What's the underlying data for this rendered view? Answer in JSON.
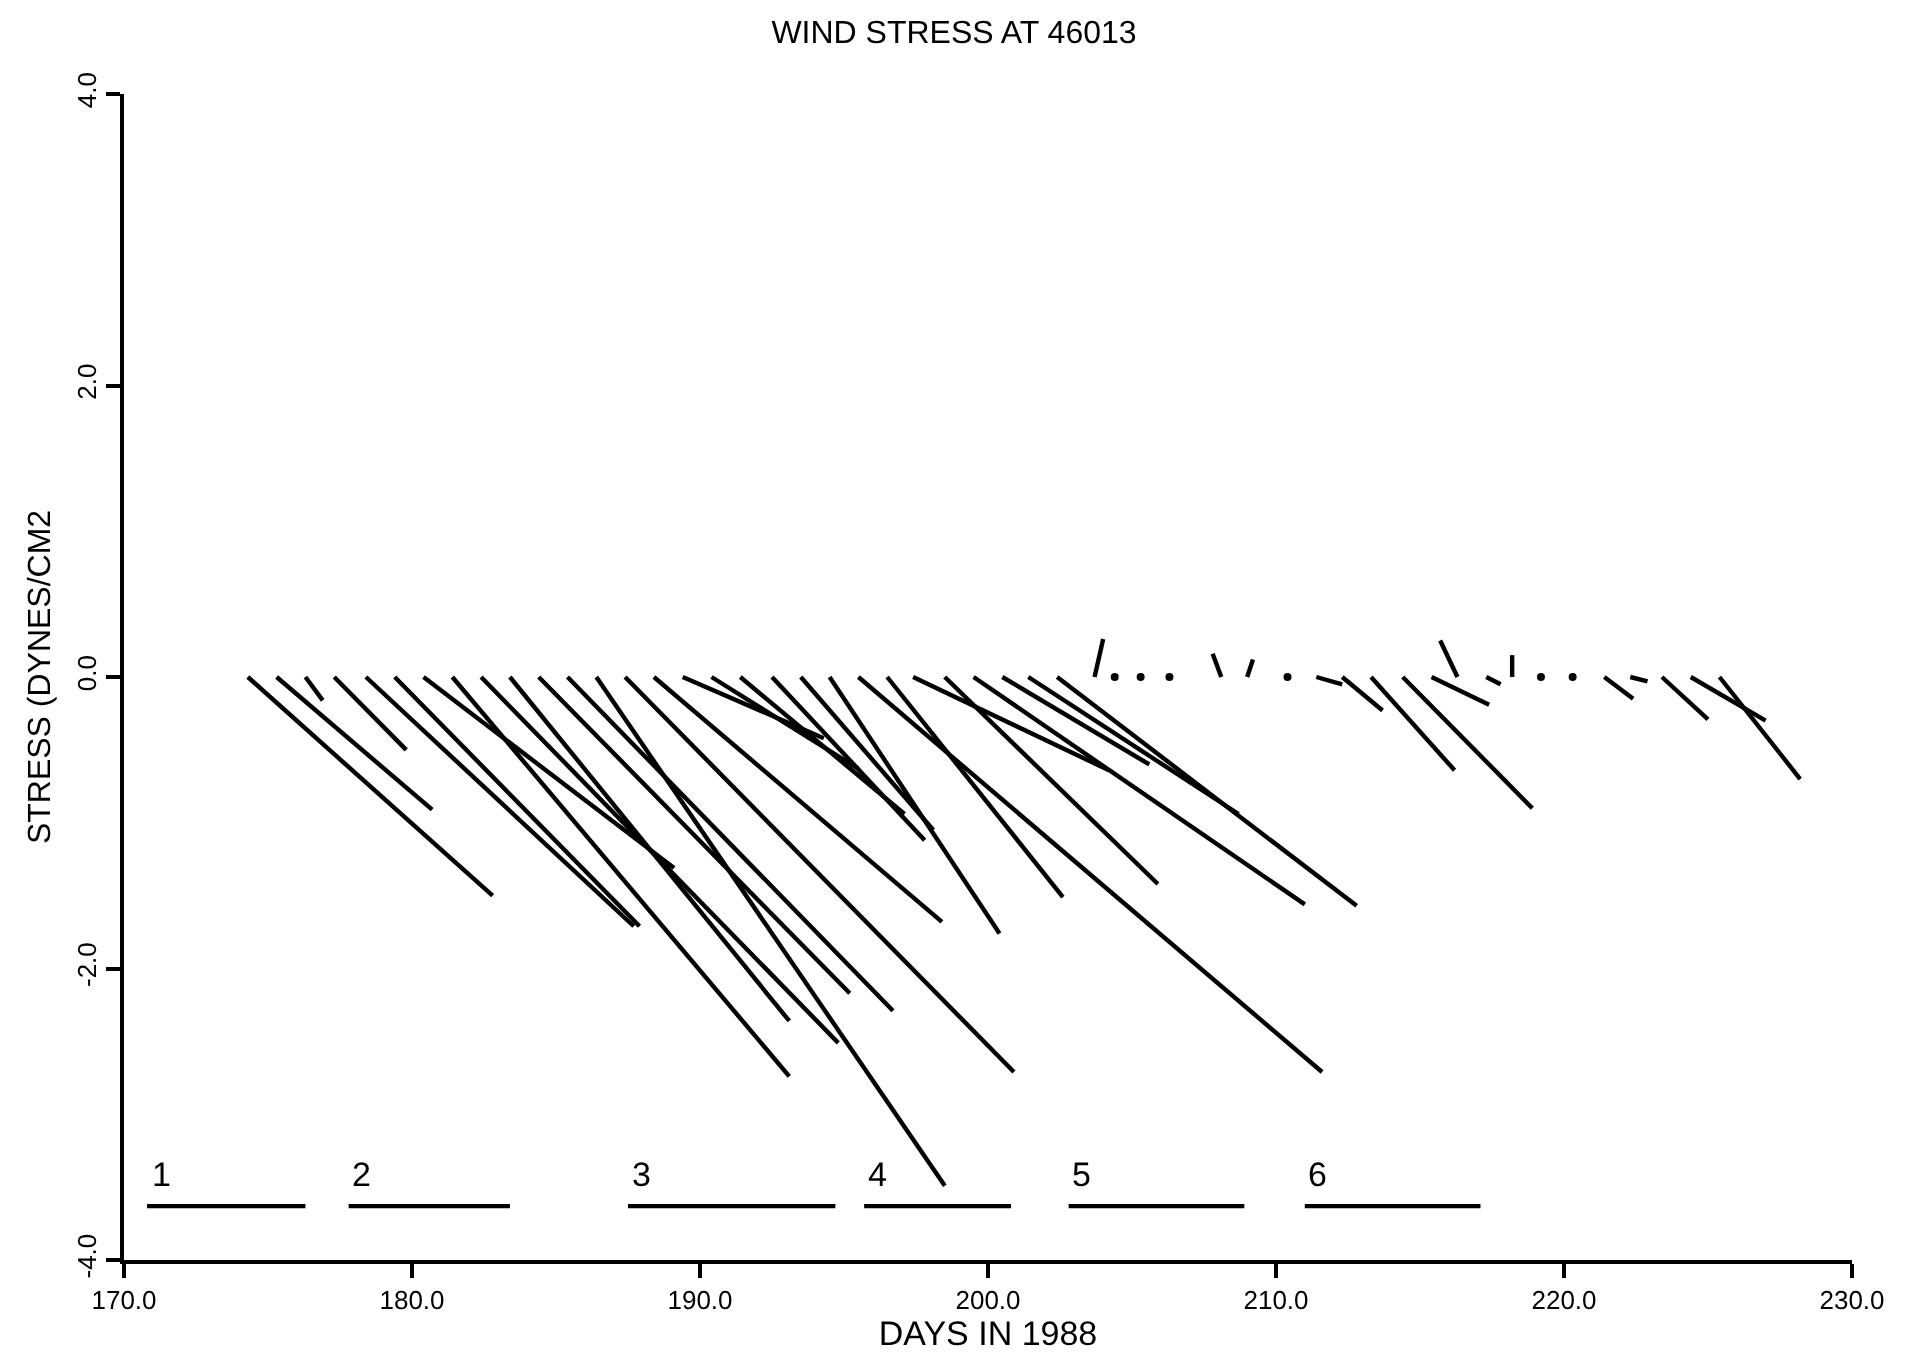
{
  "chart_data": {
    "type": "line",
    "title": "WIND STRESS AT 46013",
    "xlabel": "DAYS IN 1988",
    "ylabel": "STRESS (DYNES/CM2",
    "xlim": [
      170,
      230
    ],
    "ylim": [
      -4,
      4
    ],
    "xticks": [
      {
        "value": 170,
        "label": "170.0"
      },
      {
        "value": 180,
        "label": "180.0"
      },
      {
        "value": 190,
        "label": "190.0"
      },
      {
        "value": 200,
        "label": "200.0"
      },
      {
        "value": 210,
        "label": "210.0"
      },
      {
        "value": 220,
        "label": "220.0"
      },
      {
        "value": 230,
        "label": "230.0"
      }
    ],
    "yticks": [
      {
        "value": -4,
        "label": "-4.0"
      },
      {
        "value": -2,
        "label": "-2.0"
      },
      {
        "value": 0,
        "label": "0.0"
      },
      {
        "value": 2,
        "label": "2.0"
      },
      {
        "value": 4,
        "label": "4.0"
      }
    ],
    "marker": "none",
    "line_style": "solid",
    "series": [
      {
        "color": "#000000",
        "x": [
          174.3,
          182.8,
          null,
          175.3,
          180.7,
          null,
          176.3,
          176.9,
          null,
          177.3,
          179.8,
          null,
          178.4,
          187.7,
          null,
          179.4,
          187.9,
          null,
          180.4,
          189.1,
          null,
          181.4,
          193.1,
          null,
          182.4,
          194.8,
          null,
          183.4,
          193.1,
          null,
          184.4,
          195.2,
          null,
          185.4,
          196.7,
          null,
          186.4,
          198.5,
          null,
          187.4,
          200.9,
          null,
          188.4,
          198.4,
          null,
          189.4,
          194.3,
          null,
          190.4,
          195.5,
          null,
          191.4,
          197.1,
          null,
          192.5,
          197.8,
          null,
          193.5,
          198.1,
          null,
          194.5,
          200.4,
          null,
          195.5,
          211.6,
          null,
          196.5,
          202.6,
          null,
          197.4,
          204.2,
          null,
          198.5,
          205.9,
          null,
          199.5,
          211.0,
          null,
          200.5,
          205.6,
          null,
          201.4,
          208.7,
          null,
          202.4,
          212.8,
          null,
          203.7,
          204.0,
          null,
          208.1,
          207.8,
          null,
          209.0,
          209.2,
          null,
          211.4,
          212.3,
          null,
          212.3,
          213.7,
          null,
          213.3,
          216.2,
          null,
          214.4,
          218.9,
          null,
          215.4,
          217.4,
          null,
          216.3,
          215.7,
          null,
          217.3,
          217.8,
          null,
          218.2,
          218.2,
          null,
          221.4,
          222.4,
          null,
          222.3,
          222.9,
          null,
          223.4,
          225.0,
          null,
          224.4,
          227.0,
          null,
          225.4,
          228.2,
          null
        ],
        "values": [
          0,
          -1.5,
          null,
          0,
          -0.91,
          null,
          0,
          -0.16,
          null,
          0,
          -0.5,
          null,
          0,
          -1.71,
          null,
          0,
          -1.71,
          null,
          0,
          -1.31,
          null,
          0,
          -2.74,
          null,
          0,
          -2.51,
          null,
          0,
          -2.36,
          null,
          0,
          -2.17,
          null,
          0,
          -2.29,
          null,
          0,
          -3.49,
          null,
          0,
          -2.71,
          null,
          0,
          -1.68,
          null,
          0,
          -0.42,
          null,
          0,
          -0.63,
          null,
          0,
          -0.94,
          null,
          0,
          -1.12,
          null,
          0,
          -1.05,
          null,
          0,
          -1.76,
          null,
          0,
          -2.71,
          null,
          0,
          -1.51,
          null,
          0,
          -0.64,
          null,
          0,
          -1.42,
          null,
          0,
          -1.56,
          null,
          0,
          -0.6,
          null,
          0,
          -0.94,
          null,
          0,
          -1.57,
          null,
          0,
          0.26,
          null,
          0,
          0.16,
          null,
          0,
          0.12,
          null,
          0,
          -0.05,
          null,
          0,
          -0.23,
          null,
          0,
          -0.64,
          null,
          0,
          -0.9,
          null,
          0,
          -0.19,
          null,
          0,
          0.25,
          null,
          0,
          -0.05,
          null,
          0,
          0.15,
          null,
          0,
          -0.15,
          null,
          0,
          -0.03,
          null,
          0,
          -0.29,
          null,
          0,
          -0.3,
          null,
          0,
          -0.7,
          null
        ]
      },
      {
        "type": "scatter",
        "marker": "circle",
        "color": "#000000",
        "x": [
          204.4,
          205.3,
          206.3,
          210.4,
          219.2,
          220.3
        ],
        "values": [
          0,
          0,
          0,
          0,
          0,
          0
        ]
      },
      {
        "color": "#000000",
        "x": [
          170.8,
          176.3,
          null,
          177.8,
          183.4,
          null,
          187.5,
          194.7,
          null,
          195.7,
          200.8,
          null,
          202.8,
          208.9,
          null,
          211.0,
          217.1,
          null
        ],
        "values": [
          -3.63,
          -3.63,
          null,
          -3.63,
          -3.63,
          null,
          -3.63,
          -3.63,
          null,
          -3.63,
          -3.63,
          null,
          -3.63,
          -3.63,
          null,
          -3.63,
          -3.63,
          null
        ]
      }
    ],
    "annotations": [
      {
        "text": "1",
        "x": 170.8,
        "y": -3.63
      },
      {
        "text": "2",
        "x": 177.8,
        "y": -3.63
      },
      {
        "text": "3",
        "x": 187.5,
        "y": -3.63
      },
      {
        "text": "4",
        "x": 195.7,
        "y": -3.63
      },
      {
        "text": "5",
        "x": 202.8,
        "y": -3.63
      },
      {
        "text": "6",
        "x": 211.0,
        "y": -3.63
      }
    ]
  }
}
